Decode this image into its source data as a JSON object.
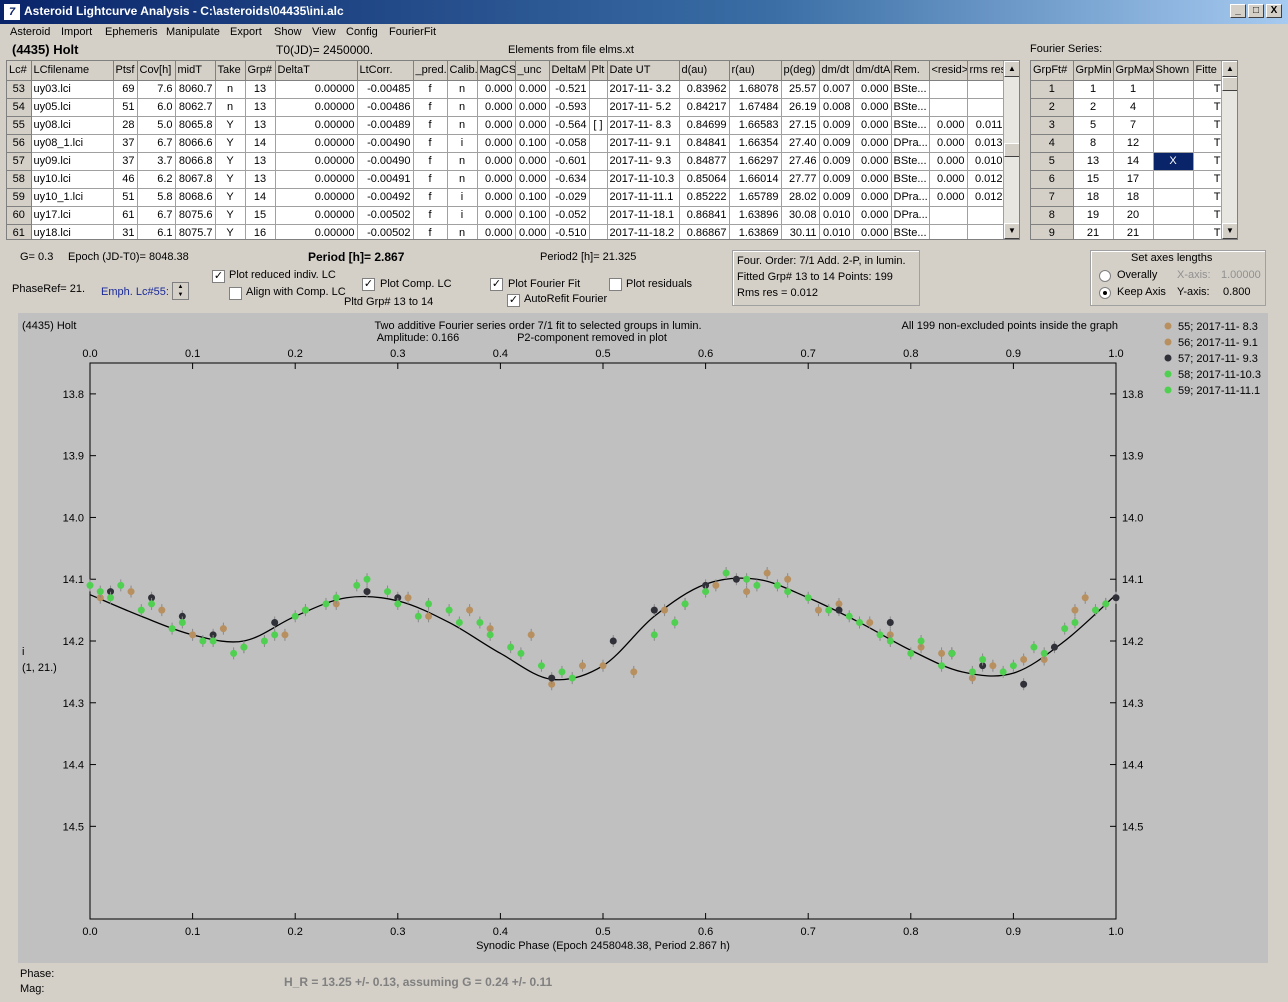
{
  "window": {
    "title": "Asteroid Lightcurve Analysis - C:\\asteroids\\04435\\ini.alc",
    "minimize": "_",
    "maximize": "□",
    "close": "X"
  },
  "menu": [
    "Asteroid",
    "Import",
    "Ephemeris",
    "Manipulate",
    "Export",
    "Show",
    "View",
    "Config",
    "FourierFit"
  ],
  "header": {
    "asteroid": "(4435) Holt",
    "t0": "T0(JD)= 2450000.",
    "elements": "Elements from file elms.xt",
    "fourier_series_label": "Fourier Series:"
  },
  "lc_table": {
    "columns": [
      "Lc#",
      "LCfilename",
      "Ptsf",
      "Cov[h]",
      "midT",
      "Take",
      "Grp#",
      "DeltaT",
      "LtCorr.",
      "_pred.",
      "Calib.",
      "MagCS",
      "_unc",
      "DeltaM",
      "Plt",
      "Date UT",
      "d(au)",
      "r(au)",
      "p(deg)",
      "dm/dt",
      "dm/dtA",
      "Rem.",
      "<resid>",
      "rms res"
    ],
    "rows": [
      [
        "53",
        "uy03.lci",
        "69",
        "7.6",
        "8060.7",
        "n",
        "13",
        "0.00000",
        "-0.00485",
        "f",
        "n",
        "0.000",
        "0.000",
        "-0.521",
        "",
        "2017-11- 3.2",
        "0.83962",
        "1.68078",
        "25.57",
        "0.007",
        "0.000",
        "BSte...",
        "",
        ""
      ],
      [
        "54",
        "uy05.lci",
        "51",
        "6.0",
        "8062.7",
        "n",
        "13",
        "0.00000",
        "-0.00486",
        "f",
        "n",
        "0.000",
        "0.000",
        "-0.593",
        "",
        "2017-11- 5.2",
        "0.84217",
        "1.67484",
        "26.19",
        "0.008",
        "0.000",
        "BSte...",
        "",
        ""
      ],
      [
        "55",
        "uy08.lci",
        "28",
        "5.0",
        "8065.8",
        "Y",
        "13",
        "0.00000",
        "-0.00489",
        "f",
        "n",
        "0.000",
        "0.000",
        "-0.564",
        "[ ]",
        "2017-11- 8.3",
        "0.84699",
        "1.66583",
        "27.15",
        "0.009",
        "0.000",
        "BSte...",
        "0.000",
        "0.011"
      ],
      [
        "56",
        "uy08_1.lci",
        "37",
        "6.7",
        "8066.6",
        "Y",
        "14",
        "0.00000",
        "-0.00490",
        "f",
        "i",
        "0.000",
        "0.100",
        "-0.058",
        "",
        "2017-11- 9.1",
        "0.84841",
        "1.66354",
        "27.40",
        "0.009",
        "0.000",
        "DPra...",
        "0.000",
        "0.013"
      ],
      [
        "57",
        "uy09.lci",
        "37",
        "3.7",
        "8066.8",
        "Y",
        "13",
        "0.00000",
        "-0.00490",
        "f",
        "n",
        "0.000",
        "0.000",
        "-0.601",
        "",
        "2017-11- 9.3",
        "0.84877",
        "1.66297",
        "27.46",
        "0.009",
        "0.000",
        "BSte...",
        "0.000",
        "0.010"
      ],
      [
        "58",
        "uy10.lci",
        "46",
        "6.2",
        "8067.8",
        "Y",
        "13",
        "0.00000",
        "-0.00491",
        "f",
        "n",
        "0.000",
        "0.000",
        "-0.634",
        "",
        "2017-11-10.3",
        "0.85064",
        "1.66014",
        "27.77",
        "0.009",
        "0.000",
        "BSte...",
        "0.000",
        "0.012"
      ],
      [
        "59",
        "uy10_1.lci",
        "51",
        "5.8",
        "8068.6",
        "Y",
        "14",
        "0.00000",
        "-0.00492",
        "f",
        "i",
        "0.000",
        "0.100",
        "-0.029",
        "",
        "2017-11-11.1",
        "0.85222",
        "1.65789",
        "28.02",
        "0.009",
        "0.000",
        "DPra...",
        "0.000",
        "0.012"
      ],
      [
        "60",
        "uy17.lci",
        "61",
        "6.7",
        "8075.6",
        "Y",
        "15",
        "0.00000",
        "-0.00502",
        "f",
        "i",
        "0.000",
        "0.100",
        "-0.052",
        "",
        "2017-11-18.1",
        "0.86841",
        "1.63896",
        "30.08",
        "0.010",
        "0.000",
        "DPra...",
        "",
        ""
      ],
      [
        "61",
        "uy18.lci",
        "31",
        "6.1",
        "8075.7",
        "Y",
        "16",
        "0.00000",
        "-0.00502",
        "f",
        "n",
        "0.000",
        "0.000",
        "-0.510",
        "",
        "2017-11-18.2",
        "0.86867",
        "1.63869",
        "30.11",
        "0.010",
        "0.000",
        "BSte...",
        "",
        ""
      ]
    ]
  },
  "fourier_table": {
    "columns": [
      "GrpFt#",
      "GrpMin",
      "GrpMax",
      "Shown",
      "Fitte"
    ],
    "rows": [
      [
        "1",
        "1",
        "1",
        "",
        "T"
      ],
      [
        "2",
        "2",
        "4",
        "",
        "T"
      ],
      [
        "3",
        "5",
        "7",
        "",
        "T"
      ],
      [
        "4",
        "8",
        "12",
        "",
        "T"
      ],
      [
        "5",
        "13",
        "14",
        "X",
        "T"
      ],
      [
        "6",
        "15",
        "17",
        "",
        "T"
      ],
      [
        "7",
        "18",
        "18",
        "",
        "T"
      ],
      [
        "8",
        "19",
        "20",
        "",
        "T"
      ],
      [
        "9",
        "21",
        "21",
        "",
        "T"
      ]
    ]
  },
  "controls": {
    "g": "G= 0.3",
    "epoch": "Epoch (JD-T0)= 8048.38",
    "period": "Period [h]= 2.867",
    "period2": "Period2 [h]= 21.325",
    "phaseref": "PhaseRef= 21.",
    "emph": "Emph. Lc#55:",
    "plot_reduced": "Plot reduced indiv. LC",
    "align_comp": "Align with Comp. LC",
    "plot_comp": "Plot Comp. LC",
    "pltd_grp": "Pltd Grp#  13 to   14",
    "plot_fourier": "Plot Fourier Fit",
    "autorefit": "AutoRefit Fourier",
    "plot_residuals": "Plot residuals",
    "info1": "Four. Order:  7/1      Add. 2-P, in lumin.",
    "info2": "Fitted Grp# 13 to 14 Points: 199",
    "info3": "Rms res      = 0.012",
    "axes_title": "Set axes lengths",
    "overally": "Overally",
    "keep_axis": "Keep Axis",
    "xaxis_label": "X-axis:",
    "xaxis_val": "1.00000",
    "yaxis_label": "Y-axis:",
    "yaxis_val": "0.800"
  },
  "footer": {
    "phase": "Phase:",
    "mag": "Mag:",
    "hr": "H_R = 13.25 +/- 0.13, assuming G = 0.24 +/- 0.11"
  },
  "chart_data": {
    "type": "scatter",
    "title_left": "(4435) Holt",
    "title_center1": "Two additive Fourier series order 7/1 fit to selected groups in lumin.",
    "title_center2": "Amplitude: 0.166",
    "title_center3": "P2-component removed in plot",
    "title_right": "All 199 non-excluded points inside the graph",
    "xlabel": "Synodic Phase (Epoch 2458048.38, Period 2.867 h)",
    "ylabel1": "i",
    "ylabel2": "(1, 21.)",
    "xlim": [
      0,
      1
    ],
    "ylim": [
      13.75,
      14.65
    ],
    "x_ticks": [
      "0.0",
      "0.1",
      "0.2",
      "0.3",
      "0.4",
      "0.5",
      "0.6",
      "0.7",
      "0.8",
      "0.9",
      "1.0"
    ],
    "y_ticks": [
      "13.8",
      "13.9",
      "14.0",
      "14.1",
      "14.2",
      "14.3",
      "14.4",
      "14.5"
    ],
    "fit_curve": {
      "x": [
        0,
        0.05,
        0.1,
        0.15,
        0.2,
        0.25,
        0.3,
        0.35,
        0.4,
        0.45,
        0.5,
        0.55,
        0.6,
        0.65,
        0.7,
        0.75,
        0.8,
        0.85,
        0.9,
        0.95,
        1.0
      ],
      "y": [
        14.125,
        14.16,
        14.19,
        14.2,
        14.16,
        14.13,
        14.135,
        14.17,
        14.22,
        14.262,
        14.24,
        14.16,
        14.108,
        14.1,
        14.13,
        14.17,
        14.215,
        14.25,
        14.252,
        14.2,
        14.125
      ]
    },
    "series": [
      {
        "name": "55; 2017-11- 8.3",
        "color": "#b89060",
        "x": [
          0.04,
          0.07,
          0.13,
          0.19,
          0.24,
          0.31,
          0.37,
          0.43,
          0.48,
          0.53,
          0.58,
          0.64,
          0.68,
          0.73,
          0.76,
          0.83,
          0.88,
          0.93,
          0.97
        ],
        "y": [
          14.12,
          14.15,
          14.18,
          14.19,
          14.14,
          14.13,
          14.15,
          14.19,
          14.24,
          14.25,
          14.14,
          14.12,
          14.1,
          14.14,
          14.17,
          14.22,
          14.24,
          14.23,
          14.13
        ]
      },
      {
        "name": "56; 2017-11- 9.1",
        "color": "#b89060",
        "x": [
          0.01,
          0.1,
          0.15,
          0.21,
          0.27,
          0.33,
          0.39,
          0.45,
          0.5,
          0.56,
          0.61,
          0.66,
          0.71,
          0.78,
          0.81,
          0.86,
          0.91,
          0.96,
          0.99
        ],
        "y": [
          14.13,
          14.19,
          14.21,
          14.15,
          14.12,
          14.16,
          14.18,
          14.27,
          14.24,
          14.15,
          14.11,
          14.09,
          14.15,
          14.19,
          14.21,
          14.26,
          14.23,
          14.15,
          14.14
        ]
      },
      {
        "name": "57; 2017-11- 9.3",
        "color": "#303038",
        "x": [
          0.02,
          0.06,
          0.09,
          0.12,
          0.18,
          0.27,
          0.3,
          0.45,
          0.51,
          0.55,
          0.6,
          0.63,
          0.73,
          0.78,
          0.84,
          0.87,
          0.91,
          0.94,
          1.0
        ],
        "y": [
          14.12,
          14.13,
          14.16,
          14.19,
          14.17,
          14.12,
          14.13,
          14.26,
          14.2,
          14.15,
          14.11,
          14.1,
          14.15,
          14.17,
          14.22,
          14.24,
          14.27,
          14.21,
          14.13
        ]
      },
      {
        "name": "58; 2017-11-10.3",
        "color": "#50d050",
        "x": [
          0.0,
          0.02,
          0.05,
          0.08,
          0.11,
          0.14,
          0.17,
          0.2,
          0.23,
          0.26,
          0.29,
          0.32,
          0.35,
          0.38,
          0.41,
          0.44,
          0.47,
          0.57,
          0.6,
          0.64,
          0.67,
          0.7,
          0.74,
          0.77,
          0.8,
          0.83,
          0.86,
          0.89,
          0.92,
          0.95,
          0.98
        ],
        "y": [
          14.11,
          14.13,
          14.15,
          14.18,
          14.2,
          14.22,
          14.2,
          14.16,
          14.14,
          14.11,
          14.12,
          14.16,
          14.15,
          14.17,
          14.21,
          14.24,
          14.26,
          14.17,
          14.12,
          14.1,
          14.11,
          14.13,
          14.16,
          14.19,
          14.22,
          14.24,
          14.25,
          14.25,
          14.21,
          14.18,
          14.15
        ]
      },
      {
        "name": "59; 2017-11-11.1",
        "color": "#50d050",
        "x": [
          0.01,
          0.03,
          0.06,
          0.09,
          0.12,
          0.15,
          0.18,
          0.21,
          0.24,
          0.27,
          0.3,
          0.33,
          0.36,
          0.39,
          0.42,
          0.46,
          0.55,
          0.58,
          0.62,
          0.65,
          0.68,
          0.72,
          0.75,
          0.78,
          0.81,
          0.84,
          0.87,
          0.9,
          0.93,
          0.96,
          0.99
        ],
        "y": [
          14.12,
          14.11,
          14.14,
          14.17,
          14.2,
          14.21,
          14.19,
          14.15,
          14.13,
          14.1,
          14.14,
          14.14,
          14.17,
          14.19,
          14.22,
          14.25,
          14.19,
          14.14,
          14.09,
          14.11,
          14.12,
          14.15,
          14.17,
          14.2,
          14.2,
          14.22,
          14.23,
          14.24,
          14.22,
          14.17,
          14.14
        ]
      }
    ]
  }
}
